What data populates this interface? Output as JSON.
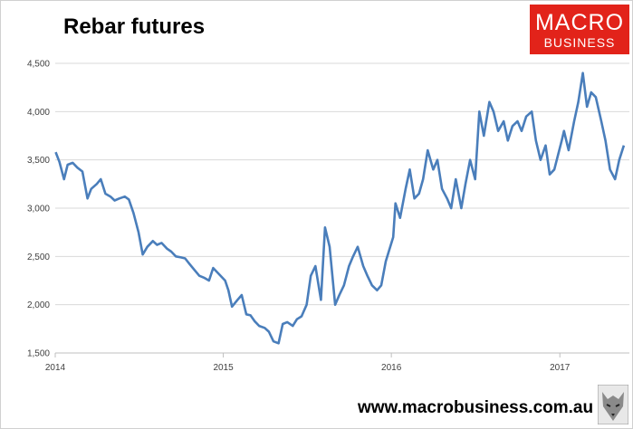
{
  "header": {
    "title": "Rebar futures"
  },
  "logo": {
    "line1": "MACRO",
    "line2": "BUSINESS",
    "color": "#e2231a"
  },
  "footer": {
    "url": "www.macrobusiness.com.au"
  },
  "chart_data": {
    "type": "line",
    "title": "Rebar futures",
    "xlabel": "",
    "ylabel": "",
    "ylim": [
      1500,
      4500
    ],
    "xlim": [
      "2014-01-01",
      "2017-06-01"
    ],
    "yticks": [
      1500,
      2000,
      2500,
      3000,
      3500,
      4000,
      4500
    ],
    "ytick_labels": [
      "1,500",
      "2,000",
      "2,500",
      "3,000",
      "3,500",
      "4,000",
      "4,500"
    ],
    "xticks": [
      "2014-01-01",
      "2015-01-01",
      "2016-01-01",
      "2017-01-01"
    ],
    "xtick_labels": [
      "2014",
      "2015",
      "2016",
      "2017"
    ],
    "grid": true,
    "color": "#4a7ebb",
    "series": [
      {
        "x": [
          "2014-01-02",
          "2014-01-10",
          "2014-01-20",
          "2014-01-28",
          "2014-02-08",
          "2014-02-18",
          "2014-03-01",
          "2014-03-12",
          "2014-03-20",
          "2014-04-01",
          "2014-04-10",
          "2014-04-20",
          "2014-05-01",
          "2014-05-10",
          "2014-05-20",
          "2014-06-01",
          "2014-06-10",
          "2014-06-20",
          "2014-07-01",
          "2014-07-10",
          "2014-07-20",
          "2014-08-01",
          "2014-08-10",
          "2014-08-20",
          "2014-09-01",
          "2014-09-10",
          "2014-09-20",
          "2014-10-01",
          "2014-10-10",
          "2014-10-20",
          "2014-11-01",
          "2014-11-10",
          "2014-11-20",
          "2014-12-01",
          "2014-12-10",
          "2014-12-20",
          "2015-01-05",
          "2015-01-12",
          "2015-01-20",
          "2015-02-01",
          "2015-02-10",
          "2015-02-20",
          "2015-03-01",
          "2015-03-10",
          "2015-03-20",
          "2015-04-01",
          "2015-04-10",
          "2015-04-20",
          "2015-05-01",
          "2015-05-10",
          "2015-05-20",
          "2015-06-01",
          "2015-06-10",
          "2015-06-20",
          "2015-07-01",
          "2015-07-10",
          "2015-07-20",
          "2015-08-01",
          "2015-08-10",
          "2015-08-20",
          "2015-09-01",
          "2015-09-10",
          "2015-09-20",
          "2015-10-01",
          "2015-10-10",
          "2015-10-20",
          "2015-11-01",
          "2015-11-10",
          "2015-11-20",
          "2015-12-01",
          "2015-12-10",
          "2015-12-20",
          "2016-01-05",
          "2016-01-10",
          "2016-01-20",
          "2016-02-01",
          "2016-02-10",
          "2016-02-20",
          "2016-03-01",
          "2016-03-10",
          "2016-03-20",
          "2016-04-01",
          "2016-04-10",
          "2016-04-20",
          "2016-05-01",
          "2016-05-10",
          "2016-05-20",
          "2016-06-01",
          "2016-06-10",
          "2016-06-20",
          "2016-07-01",
          "2016-07-10",
          "2016-07-20",
          "2016-08-01",
          "2016-08-10",
          "2016-08-20",
          "2016-09-01",
          "2016-09-10",
          "2016-09-20",
          "2016-10-01",
          "2016-10-10",
          "2016-10-20",
          "2016-11-01",
          "2016-11-10",
          "2016-11-20",
          "2016-12-01",
          "2016-12-10",
          "2016-12-20",
          "2017-01-05",
          "2017-01-10",
          "2017-01-20",
          "2017-02-01",
          "2017-02-10",
          "2017-02-20",
          "2017-03-01",
          "2017-03-10",
          "2017-03-20",
          "2017-04-01",
          "2017-04-10",
          "2017-04-20",
          "2017-05-01",
          "2017-05-10",
          "2017-05-20"
        ],
        "y": [
          3580,
          3480,
          3300,
          3450,
          3470,
          3420,
          3380,
          3100,
          3200,
          3250,
          3300,
          3150,
          3120,
          3080,
          3100,
          3120,
          3090,
          2950,
          2750,
          2520,
          2600,
          2660,
          2620,
          2640,
          2580,
          2550,
          2500,
          2490,
          2480,
          2420,
          2350,
          2300,
          2280,
          2250,
          2380,
          2330,
          2250,
          2150,
          1980,
          2050,
          2100,
          1900,
          1890,
          1830,
          1780,
          1760,
          1720,
          1620,
          1600,
          1800,
          1820,
          1780,
          1850,
          1880,
          2000,
          2300,
          2400,
          2050,
          2800,
          2600,
          2000,
          2100,
          2200,
          2400,
          2500,
          2600,
          2400,
          2300,
          2200,
          2150,
          2200,
          2450,
          2700,
          3050,
          2900,
          3200,
          3400,
          3100,
          3150,
          3300,
          3600,
          3400,
          3500,
          3200,
          3100,
          3000,
          3300,
          3000,
          3250,
          3500,
          3300,
          4000,
          3750,
          4100,
          4000,
          3800,
          3900,
          3700,
          3850,
          3900,
          3800,
          3950,
          4000,
          3700,
          3500,
          3650,
          3350,
          3400,
          3700,
          3800,
          3600,
          3900,
          4100,
          4400,
          4050,
          4200,
          4150,
          3900,
          3700,
          3400,
          3300,
          3500,
          3650
        ]
      }
    ]
  }
}
